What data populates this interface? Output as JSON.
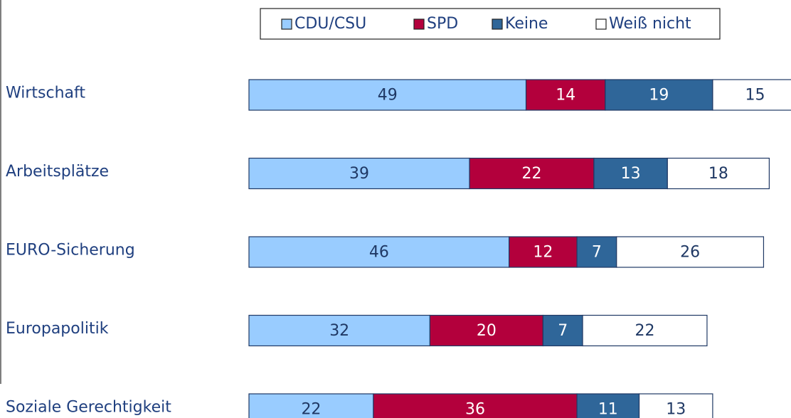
{
  "chart_data": {
    "type": "stacked-bar",
    "orientation": "horizontal",
    "categories": [
      "Wirtschaft",
      "Arbeitsplätze",
      "EURO-Sicherung",
      "Europapolitik",
      "Soziale Gerechtigkeit"
    ],
    "series": [
      {
        "name": "CDU/CSU",
        "color": "#99ccff",
        "label_color": "#1f3864",
        "values": [
          49,
          39,
          46,
          32,
          22
        ]
      },
      {
        "name": "SPD",
        "color": "#b3003c",
        "label_color": "#ffffff",
        "values": [
          14,
          22,
          12,
          20,
          36
        ]
      },
      {
        "name": "Keine",
        "color": "#2f6699",
        "label_color": "#ffffff",
        "values": [
          19,
          13,
          7,
          7,
          11
        ]
      },
      {
        "name": "Weiß nicht",
        "color": "#ffffff",
        "label_color": "#1f3864",
        "values": [
          15,
          18,
          26,
          22,
          13
        ]
      }
    ],
    "legend": "top"
  }
}
